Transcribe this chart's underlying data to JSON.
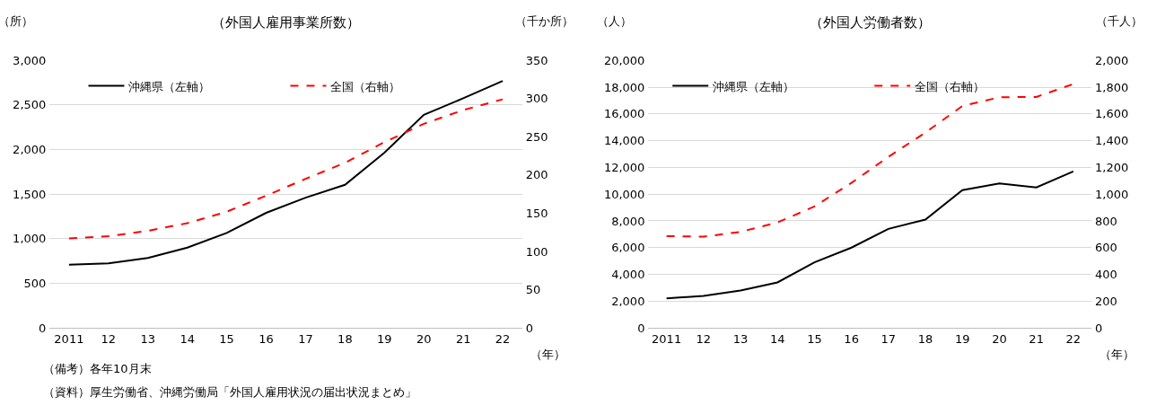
{
  "chart_data": [
    {
      "type": "line",
      "title": "（外国人雇用事業所数）",
      "ylabel": "（所）",
      "y2label": "（千か所）",
      "xlabel": "（年）",
      "categories": [
        "2011",
        "12",
        "13",
        "14",
        "15",
        "16",
        "17",
        "18",
        "19",
        "20",
        "21",
        "22"
      ],
      "series": [
        {
          "name": "沖縄県（左軸）",
          "color": "#000000",
          "line_style": "solid",
          "values": [
            710,
            725,
            785,
            900,
            1065,
            1290,
            1460,
            1605,
            1965,
            2390,
            2575,
            2770
          ]
        },
        {
          "name": "全国（右軸）",
          "color": "#ff0000",
          "line_style": "dashed",
          "axis": "y2",
          "values": [
            117,
            120,
            127,
            137,
            152,
            173,
            195,
            216,
            243,
            267,
            285,
            299
          ]
        }
      ],
      "ylim": [
        0,
        3000
      ],
      "yticks": [
        0,
        500,
        {
          "value": 1000,
          "label": "1,000"
        },
        {
          "value": 1500,
          "label": "1,500"
        },
        {
          "value": 2000,
          "label": "2,000"
        },
        {
          "value": 2500,
          "label": "2,500"
        },
        {
          "value": 3000,
          "label": "3,000"
        }
      ],
      "y2lim": [
        0,
        350
      ],
      "y2ticks": [
        0,
        50,
        100,
        150,
        200,
        250,
        300,
        350
      ],
      "grid": "y",
      "legend": "top",
      "marker": "none",
      "annotations": [
        "（備考）各年10月末",
        "（資料）厚生労働省、沖縄労働局「外国人雇用状況の届出状況まとめ」"
      ]
    },
    {
      "type": "line",
      "title": "（外国人労働者数）",
      "ylabel": "（人）",
      "y2label": "（千人）",
      "xlabel": "（年）",
      "categories": [
        "2011",
        "12",
        "13",
        "14",
        "15",
        "16",
        "17",
        "18",
        "19",
        "20",
        "21",
        "22"
      ],
      "series": [
        {
          "name": "沖縄県（左軸）",
          "color": "#000000",
          "line_style": "solid",
          "values": [
            2200,
            2400,
            2800,
            3400,
            4900,
            6000,
            7400,
            8100,
            10300,
            10800,
            10500,
            11700
          ]
        },
        {
          "name": "全国（右軸）",
          "color": "#ff0000",
          "line_style": "dashed",
          "axis": "y2",
          "values": [
            686,
            682,
            718,
            788,
            908,
            1084,
            1279,
            1460,
            1659,
            1724,
            1727,
            1823
          ]
        }
      ],
      "ylim": [
        0,
        20000
      ],
      "yticks": [
        0,
        {
          "value": 2000,
          "label": "2,000"
        },
        {
          "value": 4000,
          "label": "4,000"
        },
        {
          "value": 6000,
          "label": "6,000"
        },
        {
          "value": 8000,
          "label": "8,000"
        },
        {
          "value": 10000,
          "label": "10,000"
        },
        {
          "value": 12000,
          "label": "12,000"
        },
        {
          "value": 14000,
          "label": "14,000"
        },
        {
          "value": 16000,
          "label": "16,000"
        },
        {
          "value": 18000,
          "label": "18,000"
        },
        {
          "value": 20000,
          "label": "20,000"
        }
      ],
      "y2lim": [
        0,
        2000
      ],
      "y2ticks": [
        0,
        200,
        400,
        600,
        800,
        {
          "value": 1000,
          "label": "1,000"
        },
        {
          "value": 1200,
          "label": "1,200"
        },
        {
          "value": 1400,
          "label": "1,400"
        },
        {
          "value": 1600,
          "label": "1,600"
        },
        {
          "value": 1800,
          "label": "1,800"
        },
        {
          "value": 2000,
          "label": "2,000"
        }
      ],
      "grid": "y",
      "legend": "top",
      "marker": "none"
    }
  ]
}
